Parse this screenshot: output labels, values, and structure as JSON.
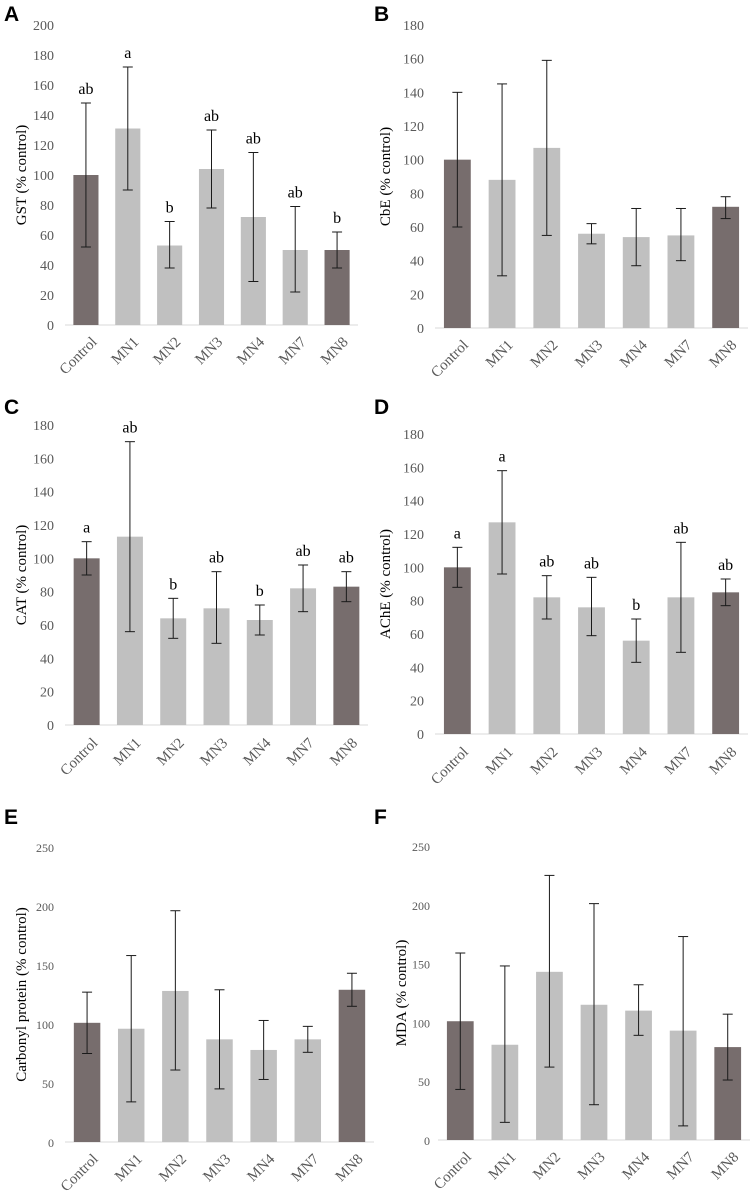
{
  "colors": {
    "dark_bar": "#776d6d",
    "light_bar": "#c0c0c0"
  },
  "chart_data": [
    {
      "panel": "A",
      "type": "bar",
      "ylabel": "GST (% control)",
      "ylim": [
        0,
        200
      ],
      "yticks": [
        0,
        20,
        40,
        60,
        80,
        100,
        120,
        140,
        160,
        180,
        200
      ],
      "categories": [
        "Control",
        "MN1",
        "MN2",
        "MN3",
        "MN4",
        "MN7",
        "MN8"
      ],
      "values": [
        100,
        131,
        53,
        104,
        72,
        50,
        50
      ],
      "err_low": [
        52,
        90,
        38,
        78,
        29,
        22,
        38
      ],
      "err_high": [
        148,
        172,
        69,
        130,
        115,
        79,
        62
      ],
      "shades": [
        "dark",
        "light",
        "light",
        "light",
        "light",
        "light",
        "dark"
      ],
      "letters": [
        "ab",
        "a",
        "b",
        "ab",
        "ab",
        "ab",
        "b"
      ]
    },
    {
      "panel": "B",
      "type": "bar",
      "ylabel": "CbE (% control)",
      "ylim": [
        0,
        180
      ],
      "yticks": [
        0,
        20,
        40,
        60,
        80,
        100,
        120,
        140,
        160,
        180
      ],
      "categories": [
        "Control",
        "MN1",
        "MN2",
        "MN3",
        "MN4",
        "MN7",
        "MN8"
      ],
      "values": [
        100,
        88,
        107,
        56,
        54,
        55,
        72
      ],
      "err_low": [
        60,
        31,
        55,
        50,
        37,
        40,
        65
      ],
      "err_high": [
        140,
        145,
        159,
        62,
        71,
        71,
        78
      ],
      "shades": [
        "dark",
        "light",
        "light",
        "light",
        "light",
        "light",
        "dark"
      ],
      "letters": [
        "",
        "",
        "",
        "",
        "",
        "",
        ""
      ]
    },
    {
      "panel": "C",
      "type": "bar",
      "ylabel": "CAT (% control)",
      "ylim": [
        0,
        180
      ],
      "yticks": [
        0,
        20,
        40,
        60,
        80,
        100,
        120,
        140,
        160,
        180
      ],
      "categories": [
        "Control",
        "MN1",
        "MN2",
        "MN3",
        "MN4",
        "MN7",
        "MN8"
      ],
      "values": [
        100,
        113,
        64,
        70,
        63,
        82,
        83
      ],
      "err_low": [
        90,
        56,
        52,
        49,
        54,
        68,
        74
      ],
      "err_high": [
        110,
        170,
        76,
        92,
        72,
        96,
        92
      ],
      "shades": [
        "dark",
        "light",
        "light",
        "light",
        "light",
        "light",
        "dark"
      ],
      "letters": [
        "a",
        "ab",
        "b",
        "ab",
        "b",
        "ab",
        "ab"
      ]
    },
    {
      "panel": "D",
      "type": "bar",
      "ylabel": "AChE (% control)",
      "ylim": [
        0,
        180
      ],
      "yticks": [
        0,
        20,
        40,
        60,
        80,
        100,
        120,
        140,
        160,
        180
      ],
      "categories": [
        "Control",
        "MN1",
        "MN2",
        "MN3",
        "MN4",
        "MN7",
        "MN8"
      ],
      "values": [
        100,
        127,
        82,
        76,
        56,
        82,
        85
      ],
      "err_low": [
        88,
        96,
        69,
        59,
        43,
        49,
        77
      ],
      "err_high": [
        112,
        158,
        95,
        94,
        69,
        115,
        93
      ],
      "shades": [
        "dark",
        "light",
        "light",
        "light",
        "light",
        "light",
        "dark"
      ],
      "letters": [
        "a",
        "a",
        "ab",
        "ab",
        "b",
        "ab",
        "ab"
      ]
    },
    {
      "panel": "E",
      "type": "bar",
      "ylabel": "Carbonyl protein (% control)",
      "ylim": [
        0,
        250
      ],
      "yticks": [
        0,
        50,
        100,
        150,
        200,
        250
      ],
      "categories": [
        "Control",
        "MN1",
        "MN2",
        "MN3",
        "MN4",
        "MN7",
        "MN8"
      ],
      "values": [
        101,
        96,
        128,
        87,
        78,
        87,
        129
      ],
      "err_low": [
        75,
        34,
        61,
        45,
        53,
        76,
        115
      ],
      "err_high": [
        127,
        158,
        196,
        129,
        103,
        98,
        143
      ],
      "shades": [
        "dark",
        "light",
        "light",
        "light",
        "light",
        "light",
        "dark"
      ],
      "letters": [
        "",
        "",
        "",
        "",
        "",
        "",
        ""
      ]
    },
    {
      "panel": "F",
      "type": "bar",
      "ylabel": "MDA (% control)",
      "ylim": [
        0,
        250
      ],
      "yticks": [
        0,
        50,
        100,
        150,
        200,
        250
      ],
      "categories": [
        "Control",
        "MN1",
        "MN2",
        "MN3",
        "MN4",
        "MN7",
        "MN8"
      ],
      "values": [
        101,
        81,
        143,
        115,
        110,
        93,
        79
      ],
      "err_low": [
        43,
        15,
        62,
        30,
        89,
        12,
        51
      ],
      "err_high": [
        159,
        148,
        225,
        201,
        132,
        173,
        107
      ],
      "shades": [
        "dark",
        "light",
        "light",
        "light",
        "light",
        "light",
        "dark"
      ],
      "letters": [
        "",
        "",
        "",
        "",
        "",
        "",
        ""
      ]
    }
  ]
}
